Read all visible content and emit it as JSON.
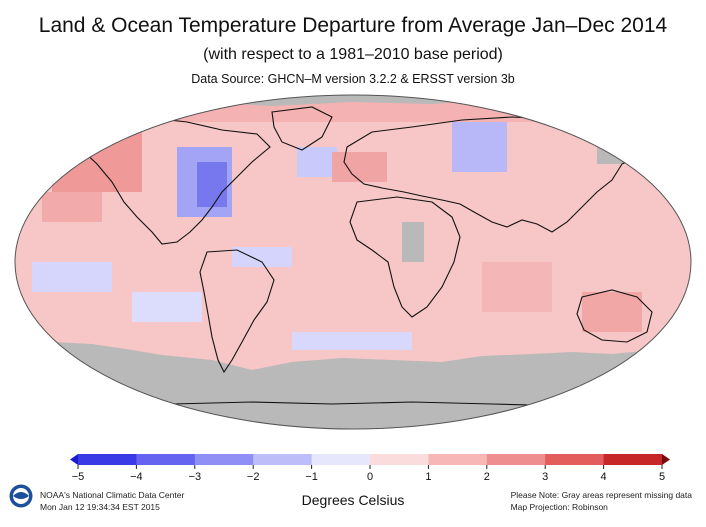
{
  "header": {
    "title": "Land & Ocean Temperature Departure from Average Jan–Dec 2014",
    "subtitle": "(with respect to a 1981–2010 base period)",
    "source": "Data Source: GHCN–M version 3.2.2 & ERSST version 3b"
  },
  "map": {
    "projection": "Robinson",
    "missing_color": "#b9b9b9",
    "ocean_base_color": "#f7c6c6"
  },
  "legend": {
    "units": "Degrees Celsius",
    "ticks": [
      "−5",
      "−4",
      "−3",
      "−2",
      "−1",
      "0",
      "1",
      "2",
      "3",
      "4",
      "5"
    ],
    "colors": [
      "#1a1ad0",
      "#3a3ae6",
      "#6464f0",
      "#8f8ff5",
      "#bdbdfa",
      "#e6e6fd",
      "#fbdcdc",
      "#f7b7b7",
      "#ef8e8e",
      "#e45d5d",
      "#c62828",
      "#7a0a0a"
    ]
  },
  "footer": {
    "agency_line1": "NOAA's National Climatic Data Center",
    "agency_line2": "Mon Jan 12 19:34:34 EST 2015",
    "note_line1": "Please Note: Gray areas represent missing data",
    "note_line2": "Map Projection: Robinson"
  }
}
